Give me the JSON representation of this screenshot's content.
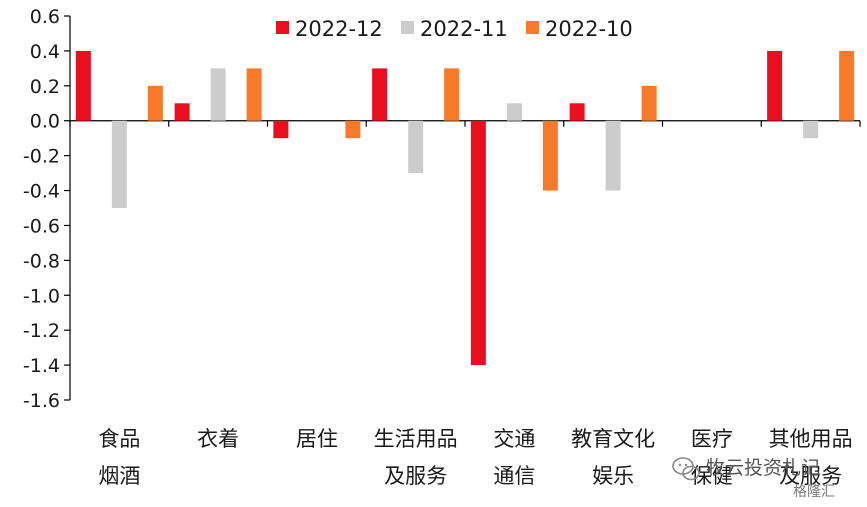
{
  "chart_data": {
    "type": "bar",
    "categories": [
      [
        "食品",
        "烟酒"
      ],
      [
        "衣着",
        ""
      ],
      [
        "居住",
        ""
      ],
      [
        "生活用品",
        "及服务"
      ],
      [
        "交通",
        "通信"
      ],
      [
        "教育文化",
        "娱乐"
      ],
      [
        "医疗",
        "保健"
      ],
      [
        "其他用品",
        "及服务"
      ]
    ],
    "series": [
      {
        "name": "2022-12",
        "color": "#e8101e",
        "values": [
          0.4,
          0.1,
          -0.1,
          0.3,
          -1.4,
          0.1,
          0.0,
          0.4
        ]
      },
      {
        "name": "2022-11",
        "color": "#cccccc",
        "values": [
          -0.5,
          0.3,
          0.0,
          -0.3,
          0.1,
          -0.4,
          0.0,
          -0.1
        ]
      },
      {
        "name": "2022-10",
        "color": "#f7792a",
        "values": [
          0.2,
          0.3,
          -0.1,
          0.3,
          -0.4,
          0.2,
          0.0,
          0.4
        ]
      }
    ],
    "ylim": [
      -1.6,
      0.6
    ],
    "yticks": [
      "0.6",
      "0.4",
      "0.2",
      "0.0",
      "-0.2",
      "-0.4",
      "-0.6",
      "-0.8",
      "-1.0",
      "-1.2",
      "-1.4",
      "-1.6"
    ],
    "legend_position": "top",
    "grid": false
  },
  "watermark": {
    "line1": "牧云投资札记",
    "line2": "格隆汇",
    "icon": "wechat-icon"
  }
}
